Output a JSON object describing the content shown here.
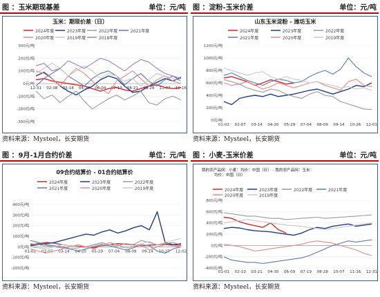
{
  "colors": {
    "header_rule": "#c00000",
    "frame": "#3a5a9a",
    "s2024": "#d62728",
    "s2023": "#1f3c88",
    "s2022": "#9a9a9a",
    "s2021": "#5b79b5",
    "s2020": "#e08a8a",
    "s2019": "#c8c8c8",
    "s2018": "#a07cc0"
  },
  "panels": [
    {
      "header_title": "图 ：玉米期现基差",
      "header_unit": "单位：元/吨",
      "source": "资料来源：Mysteel，长安期货"
    },
    {
      "header_title": "图 ：淀粉-玉米价差",
      "header_unit": "单位：元/吨",
      "source": "资料来源：Mysteel，长安期货"
    },
    {
      "header_title": "图 ：9月-1月合约价差",
      "header_unit": "单位：元/吨",
      "source": "资料来源：Mysteel，长安期货"
    },
    {
      "header_title": "图 ：小麦-玉米价差",
      "header_unit": "单位：元/吨",
      "source": "资料来源：Mysteel，长安期货"
    }
  ],
  "chart_data": [
    {
      "type": "line",
      "title": "玉米：期现价差（日）",
      "ylabel": "元/吨",
      "ylim": [
        -300,
        300
      ],
      "yticks": [
        "300元/吨",
        "200元/吨",
        "100元/吨",
        "0元/吨",
        "-100元/吨",
        "-200元/吨",
        "-300元/吨"
      ],
      "xticks": [
        "12-31",
        "02-08",
        "03-18",
        "04-26",
        "06-04",
        "07-13",
        "08-21",
        "09-29",
        "11-07",
        "12-16"
      ],
      "legend_position": "top",
      "series": [
        {
          "name": "2024年度",
          "color_key": "s2024",
          "values": [
            30,
            40,
            20,
            10,
            0,
            -10,
            -20,
            -40,
            -60,
            -40,
            -30,
            -50,
            -60,
            -40,
            -20,
            -10,
            -30,
            -40,
            -30
          ]
        },
        {
          "name": "2023年度",
          "color_key": "s2023",
          "values": [
            60,
            90,
            40,
            -20,
            -60,
            -90,
            -50,
            -20,
            30,
            60,
            40,
            -20,
            -70,
            -60,
            -20,
            10,
            40,
            20,
            50
          ]
        },
        {
          "name": "2022年度",
          "color_key": "s2022",
          "values": [
            -60,
            -120,
            -90,
            -150,
            -100,
            -60,
            -140,
            -200,
            -160,
            -120,
            -90,
            -130,
            -100,
            -60,
            -150,
            -170,
            -120,
            -100,
            -130
          ]
        },
        {
          "name": "2021年度",
          "color_key": "s2021",
          "values": [
            -20,
            40,
            80,
            120,
            60,
            20,
            -20,
            40,
            80,
            100,
            60,
            -10,
            40,
            80,
            20,
            -20,
            30,
            60,
            20
          ]
        },
        {
          "name": "2020年度",
          "color_key": "s2020",
          "values": [
            100,
            80,
            40,
            -20,
            60,
            120,
            80,
            20,
            -40,
            -80,
            20,
            60,
            100,
            40,
            -20,
            30,
            60,
            20,
            0
          ]
        },
        {
          "name": "2019年度",
          "color_key": "s2019",
          "values": [
            80,
            120,
            160,
            120,
            60,
            100,
            140,
            100,
            40,
            80,
            60,
            20,
            40,
            -20,
            30,
            80,
            60,
            40,
            20
          ]
        },
        {
          "name": "2018年度",
          "color_key": "s2018",
          "values": [
            140,
            160,
            100,
            120,
            180,
            150,
            120,
            160,
            200,
            180,
            140,
            100,
            150,
            190,
            170,
            120,
            80,
            60,
            40
          ]
        }
      ]
    },
    {
      "type": "line",
      "title": "山东玉米淀粉 - 潍坊玉米",
      "ylabel": "元/吨",
      "ylim": [
        0,
        1200
      ],
      "yticks": [
        "1200元/吨",
        "1000元/吨",
        "800元/吨",
        "600元/吨",
        "400元/吨",
        "200元/吨",
        "0元/吨"
      ],
      "xticks": [
        "01-02",
        "02-07",
        "03-14",
        "04-20",
        "05-29",
        "07-04",
        "08-09",
        "09-14",
        "10-26",
        "12-01"
      ],
      "legend_position": "top",
      "series": [
        {
          "name": "2024年度",
          "color_key": "s2024",
          "values": [
            680,
            700,
            660,
            620,
            560,
            600,
            650,
            620,
            580,
            600
          ]
        },
        {
          "name": "2023年度",
          "color_key": "s2023",
          "values": [
            300,
            250,
            350,
            380,
            400,
            380,
            420,
            380,
            400,
            420,
            450,
            480,
            500,
            460,
            420,
            460,
            500,
            560,
            540,
            600
          ]
        },
        {
          "name": "2022年度",
          "color_key": "s2022",
          "values": [
            650,
            620,
            580,
            520,
            480,
            450,
            500,
            480,
            420,
            380,
            350,
            420,
            460,
            400,
            380,
            300,
            260,
            220,
            180,
            170
          ]
        },
        {
          "name": "2021年度",
          "color_key": "s2021",
          "values": [
            720,
            760,
            700,
            640,
            600,
            560,
            620,
            660,
            640,
            600,
            620,
            700,
            760,
            800,
            740,
            820,
            1000,
            860,
            760,
            700
          ]
        },
        {
          "name": "2020年度",
          "color_key": "s2020",
          "values": [
            600,
            560,
            580,
            620,
            560,
            500,
            540,
            600,
            560,
            520,
            560,
            600,
            620,
            560,
            520,
            480,
            620,
            660,
            560,
            540
          ]
        },
        {
          "name": "2019年度",
          "color_key": "s2019",
          "values": [
            840,
            800,
            760,
            720,
            760,
            780,
            700,
            660,
            700,
            660,
            640,
            600,
            620,
            580,
            560,
            520,
            540,
            500,
            520,
            480
          ]
        }
      ]
    },
    {
      "type": "line",
      "title": "09合约结算价 - 01合约结算价",
      "ylabel": "元/吨",
      "ylim": [
        -200,
        400
      ],
      "yticks": [
        "400元/吨",
        "300元/吨",
        "200元/吨",
        "100元/吨",
        "0元/吨",
        "-100元/吨",
        "-200元/吨"
      ],
      "xticks": [
        "01-02",
        "02-07",
        "03-14",
        "04-20",
        "05-29",
        "07-04",
        "08-09",
        "09-14",
        "10-27",
        "12-02"
      ],
      "legend_position": "top",
      "series": [
        {
          "name": "2024年度",
          "color_key": "s2024",
          "values": [
            20,
            30,
            40,
            35,
            20,
            10,
            5,
            0,
            -10,
            10,
            20,
            30,
            25,
            20,
            10,
            15,
            20,
            25,
            20,
            15
          ]
        },
        {
          "name": "2023年度",
          "color_key": "s2023",
          "values": [
            10,
            20,
            30,
            40,
            60,
            80,
            100,
            120,
            110,
            140,
            160,
            130,
            150,
            180,
            200,
            160,
            330,
            40,
            20,
            30
          ]
        },
        {
          "name": "2022年度",
          "color_key": "s2022",
          "values": [
            30,
            20,
            10,
            0,
            -10,
            -20,
            -10,
            0,
            20,
            40,
            20,
            10,
            30,
            20,
            60,
            40,
            20,
            30,
            40,
            20
          ]
        },
        {
          "name": "2021年度",
          "color_key": "s2021",
          "values": [
            60,
            40,
            20,
            10,
            0,
            -20,
            -40,
            -20,
            0,
            20,
            10,
            -10,
            -30,
            -10,
            20,
            10,
            -40,
            -60,
            -20,
            0
          ]
        },
        {
          "name": "2020年度",
          "color_key": "s2020",
          "values": [
            -20,
            -40,
            -60,
            -40,
            -20,
            0,
            20,
            0,
            -20,
            10,
            40,
            20,
            -10,
            0,
            20,
            -30,
            0,
            20,
            10,
            0
          ]
        },
        {
          "name": "2019年度",
          "color_key": "s2019",
          "values": [
            0,
            -10,
            -20,
            0,
            20,
            10,
            0,
            -10,
            10,
            30,
            20,
            0,
            -10,
            10,
            30,
            50,
            20,
            40,
            60,
            80
          ]
        }
      ]
    },
    {
      "type": "line",
      "title": "我的农产品网：小麦：均价：中国（日） - 我的农产品网：玉米：均价：中国（日）",
      "ylabel": "元/吨",
      "ylim": [
        -400,
        800
      ],
      "yticks": [
        "800元/吨",
        "600元/吨",
        "400元/吨",
        "200元/吨",
        "0元/吨",
        "-200元/吨",
        "-400元/吨"
      ],
      "xticks": [
        "01-01",
        "02-10",
        "03-21",
        "04-30",
        "06-09",
        "07-19",
        "08-28",
        "10-07",
        "11-16",
        "12-31"
      ],
      "legend_position": "top",
      "series": [
        {
          "name": "2024年度",
          "color_key": "s2024",
          "values": [
            500,
            480,
            420,
            380,
            350,
            320,
            400,
            280,
            220
          ]
        },
        {
          "name": "2023年度",
          "color_key": "s2023",
          "values": [
            300,
            320,
            310,
            280,
            260,
            250,
            240,
            220,
            200,
            180,
            220,
            280,
            320,
            300,
            340,
            360,
            380,
            340,
            360,
            380
          ]
        },
        {
          "name": "2022年度",
          "color_key": "s2022",
          "values": [
            580,
            560,
            540,
            520,
            520,
            500,
            480,
            480,
            460,
            470,
            480,
            490,
            500,
            480,
            490,
            500,
            510,
            520,
            530,
            540
          ]
        },
        {
          "name": "2021年度",
          "color_key": "s2021",
          "values": [
            -200,
            -260,
            -280,
            -300,
            -300,
            -320,
            -300,
            -280,
            -260,
            -240,
            -220,
            -180,
            -120,
            -60,
            0,
            40,
            80,
            60,
            80,
            100
          ]
        },
        {
          "name": "2020年度",
          "color_key": "s2020",
          "values": [
            20,
            0,
            -20,
            -60,
            -100,
            -80,
            -60,
            -40,
            -20,
            0,
            20,
            60,
            80,
            60,
            40,
            0,
            -40,
            -80,
            -140,
            -180
          ]
        },
        {
          "name": "2019年度",
          "color_key": "s2019",
          "values": [
            400,
            420,
            440,
            460,
            440,
            420,
            400,
            380,
            360,
            350,
            340,
            320,
            300,
            280,
            300,
            320,
            340,
            360,
            380,
            400
          ]
        }
      ]
    }
  ]
}
